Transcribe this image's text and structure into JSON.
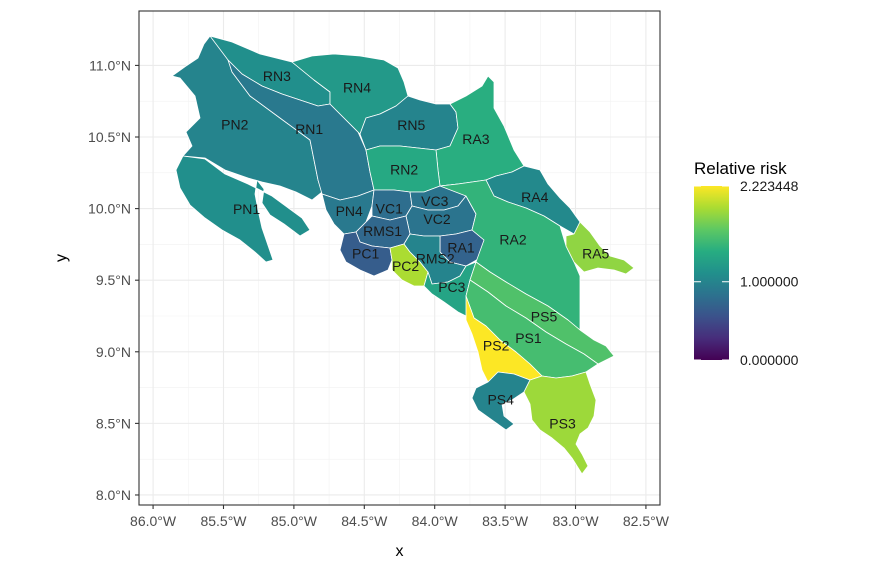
{
  "chart_data": {
    "type": "choropleth-map",
    "xlabel": "x",
    "ylabel": "y",
    "x_ticks": [
      "86.0°W",
      "85.5°W",
      "85.0°W",
      "84.5°W",
      "84.0°W",
      "83.5°W",
      "83.0°W",
      "82.5°W"
    ],
    "y_ticks": [
      "8.0°N",
      "8.5°N",
      "9.0°N",
      "9.5°N",
      "10.0°N",
      "10.5°N",
      "11.0°N"
    ],
    "xlim": [
      -86.1,
      -82.4
    ],
    "ylim": [
      7.93,
      11.38
    ],
    "grid": true,
    "legend": {
      "title": "Relative risk",
      "position": "right",
      "colormap": "viridis",
      "min": 0.0,
      "max": 2.223448,
      "labels": [
        "2.223448",
        "1.000000",
        "0.000000"
      ],
      "values": [
        2.223448,
        1.0,
        0.0
      ]
    },
    "regions": [
      {
        "name": "RN3",
        "value": 1.1
      },
      {
        "name": "RN4",
        "value": 1.2
      },
      {
        "name": "RN1",
        "value": 0.9
      },
      {
        "name": "RN5",
        "value": 1.0
      },
      {
        "name": "RA3",
        "value": 1.4
      },
      {
        "name": "PN2",
        "value": 1.0
      },
      {
        "name": "RN2",
        "value": 1.35
      },
      {
        "name": "PN1",
        "value": 1.1
      },
      {
        "name": "RA4",
        "value": 1.05
      },
      {
        "name": "VC1",
        "value": 0.8
      },
      {
        "name": "VC3",
        "value": 0.85
      },
      {
        "name": "PN4",
        "value": 0.9
      },
      {
        "name": "VC2",
        "value": 0.85
      },
      {
        "name": "RMS1",
        "value": 0.75
      },
      {
        "name": "RA1",
        "value": 0.7
      },
      {
        "name": "PC1",
        "value": 0.65
      },
      {
        "name": "RA5",
        "value": 1.85
      },
      {
        "name": "PC2",
        "value": 1.95
      },
      {
        "name": "RMS2",
        "value": 1.0
      },
      {
        "name": "RA2",
        "value": 1.45
      },
      {
        "name": "PC3",
        "value": 1.3
      },
      {
        "name": "PS5",
        "value": 1.6
      },
      {
        "name": "PS1",
        "value": 1.55
      },
      {
        "name": "PS2",
        "value": 2.22
      },
      {
        "name": "PS4",
        "value": 1.0
      },
      {
        "name": "PS3",
        "value": 1.9
      }
    ]
  }
}
